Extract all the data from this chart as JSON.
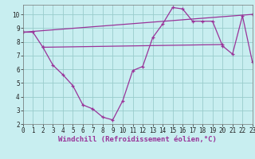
{
  "line1_x": [
    0,
    1,
    2,
    3,
    4,
    5,
    6,
    7,
    8,
    9,
    10,
    11,
    12,
    13,
    14,
    15,
    16,
    17,
    18,
    19,
    20,
    21,
    22,
    23
  ],
  "line1_y": [
    8.7,
    8.7,
    7.6,
    6.3,
    5.6,
    4.8,
    3.4,
    3.1,
    2.5,
    2.3,
    3.7,
    5.9,
    6.2,
    8.3,
    9.3,
    10.5,
    10.4,
    9.5,
    9.5,
    9.5,
    7.7,
    7.1,
    9.9,
    6.5
  ],
  "line2_x": [
    0,
    23
  ],
  "line2_y": [
    8.7,
    10.0
  ],
  "line3_x": [
    2,
    20
  ],
  "line3_y": [
    7.6,
    7.8
  ],
  "color": "#993399",
  "bg_color": "#c8eef0",
  "grid_color": "#99cccc",
  "xlabel": "Windchill (Refroidissement éolien,°C)",
  "xlim": [
    0,
    23
  ],
  "ylim": [
    2,
    10.7
  ],
  "yticks": [
    2,
    3,
    4,
    5,
    6,
    7,
    8,
    9,
    10
  ],
  "xticks": [
    0,
    1,
    2,
    3,
    4,
    5,
    6,
    7,
    8,
    9,
    10,
    11,
    12,
    13,
    14,
    15,
    16,
    17,
    18,
    19,
    20,
    21,
    22,
    23
  ],
  "marker": "+",
  "markersize": 3,
  "linewidth": 0.9,
  "xlabel_fontsize": 6.5,
  "tick_fontsize": 5.5
}
